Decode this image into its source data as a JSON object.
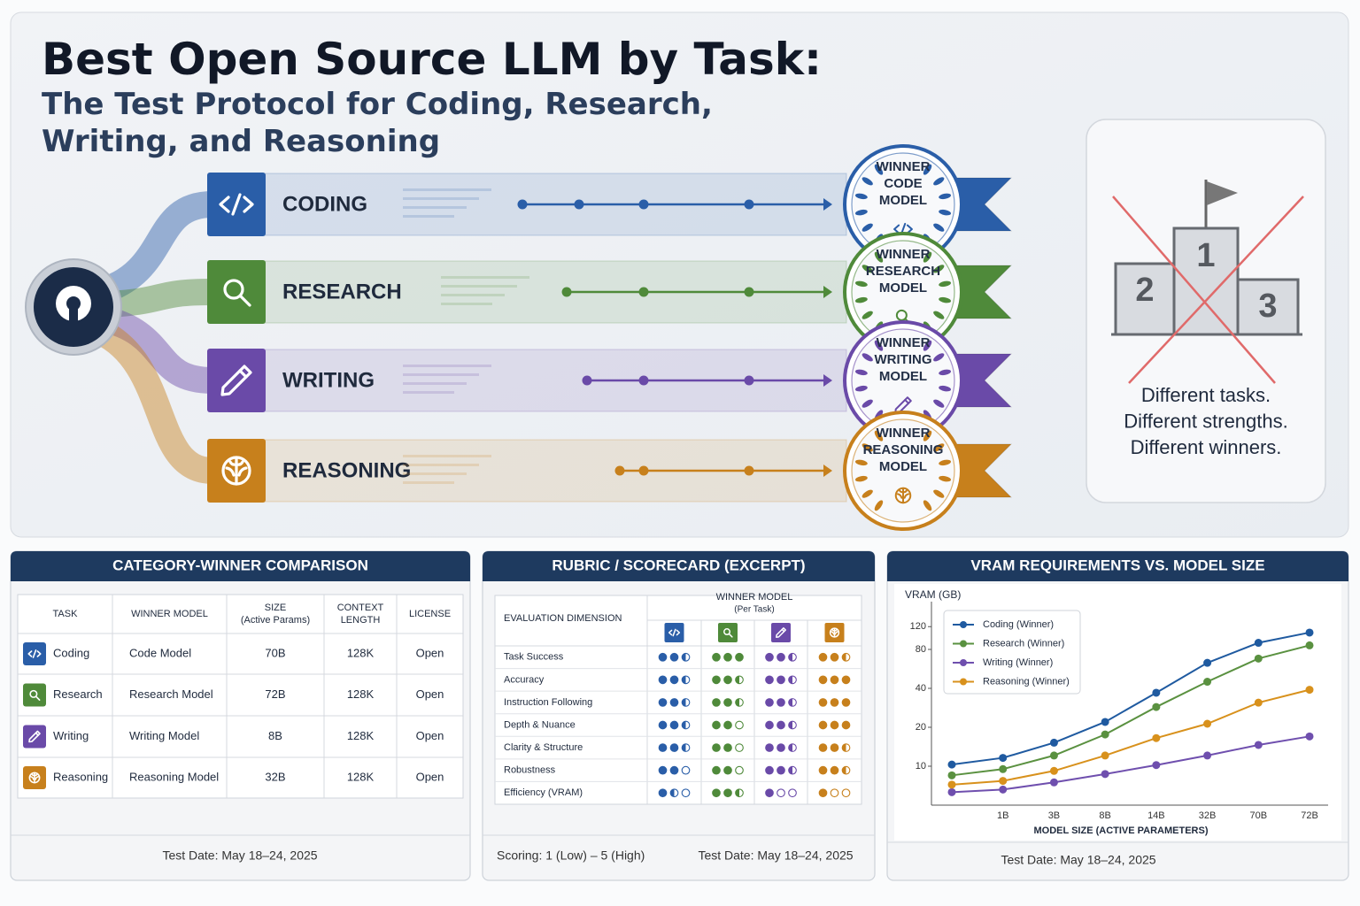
{
  "header": {
    "title": "Best Open Source LLM by Task:",
    "subtitle_lines": [
      "The Test Protocol for Coding, Research,",
      "Writing, and Reasoning"
    ]
  },
  "tasks": [
    {
      "label": "CODING",
      "color": "#2a5ea8",
      "badge": [
        "WINNER",
        "CODE",
        "MODEL"
      ]
    },
    {
      "label": "RESEARCH",
      "color": "#4f8a3a",
      "badge": [
        "WINNER",
        "RESEARCH",
        "MODEL"
      ]
    },
    {
      "label": "WRITING",
      "color": "#6a4aa8",
      "badge": [
        "WINNER",
        "WRITING",
        "MODEL"
      ]
    },
    {
      "label": "REASONING",
      "color": "#c7801c",
      "badge": [
        "WINNER",
        "REASONING",
        "MODEL"
      ]
    }
  ],
  "podium": {
    "places": [
      "1",
      "2",
      "3"
    ],
    "caption": [
      "Different tasks.",
      "Different strengths.",
      "Different winners."
    ]
  },
  "comparison": {
    "title": "CATEGORY-WINNER COMPARISON",
    "columns": [
      [
        "TASK"
      ],
      [
        "WINNER MODEL"
      ],
      [
        "SIZE",
        "(Active Params)"
      ],
      [
        "CONTEXT",
        "LENGTH"
      ],
      [
        "LICENSE"
      ]
    ],
    "rows": [
      [
        "Coding",
        "Code Model",
        "70B",
        "128K",
        "Open"
      ],
      [
        "Research",
        "Research Model",
        "72B",
        "128K",
        "Open"
      ],
      [
        "Writing",
        "Writing Model",
        "8B",
        "128K",
        "Open"
      ],
      [
        "Reasoning",
        "Reasoning Model",
        "32B",
        "128K",
        "Open"
      ]
    ],
    "footer": "Test Date: May 18–24, 2025"
  },
  "scorecard": {
    "title": "RUBRIC / SCORECARD (EXCERPT)",
    "dimension_header": "EVALUATION DIMENSION",
    "winner_header": "WINNER MODEL",
    "winner_subheader": "(Per Task)",
    "dots": 3,
    "rows": [
      {
        "dimension": "Task Success",
        "scores": [
          2.5,
          3,
          2.5,
          2.5
        ]
      },
      {
        "dimension": "Accuracy",
        "scores": [
          2.5,
          2.5,
          2.5,
          3
        ]
      },
      {
        "dimension": "Instruction Following",
        "scores": [
          2.5,
          2.5,
          2.5,
          3
        ]
      },
      {
        "dimension": "Depth & Nuance",
        "scores": [
          2.5,
          2,
          2.5,
          3
        ]
      },
      {
        "dimension": "Clarity & Structure",
        "scores": [
          2.5,
          2,
          2.5,
          2.5
        ]
      },
      {
        "dimension": "Robustness",
        "scores": [
          2,
          2,
          2.5,
          2.5
        ]
      },
      {
        "dimension": "Efficiency (VRAM)",
        "scores": [
          1.5,
          2.5,
          1,
          1
        ]
      }
    ],
    "scale_note": "Scoring: 1 (Low) – 5 (High)",
    "footer": "Test Date: May 18–24, 2025"
  },
  "chart_data": {
    "type": "line",
    "title": "VRAM REQUIREMENTS VS. MODEL SIZE",
    "y_label": "VRAM (GB)",
    "x_label": "MODEL SIZE (ACTIVE PARAMETERS)",
    "categories": [
      null,
      "1B",
      "3B",
      "8B",
      "14B",
      "32B",
      "70B",
      "72B"
    ],
    "series": [
      {
        "name": "Coding (Winner)",
        "color": "#1f5aa0",
        "values": [
          10.3,
          11.6,
          15.2,
          22,
          37,
          63,
          90,
          108
        ]
      },
      {
        "name": "Research (Winner)",
        "color": "#5a9140",
        "values": [
          8.5,
          9.5,
          12.1,
          17.6,
          28.7,
          45,
          68,
          86
        ]
      },
      {
        "name": "Writing (Winner)",
        "color": "#6f4fae",
        "values": [
          6.3,
          6.6,
          7.5,
          8.7,
          10.2,
          12.1,
          14.6,
          17
        ]
      },
      {
        "name": "Reasoning (Winner)",
        "color": "#d8911c",
        "values": [
          7.2,
          7.7,
          9.2,
          12.1,
          16.5,
          21.3,
          31,
          39
        ]
      }
    ],
    "ylim": [
      5,
      160
    ],
    "yticks": [
      10,
      20,
      40,
      80,
      120
    ],
    "log_y": true,
    "grid": false,
    "legend": "upper left",
    "footer": "Test Date: May 18–24, 2025"
  }
}
